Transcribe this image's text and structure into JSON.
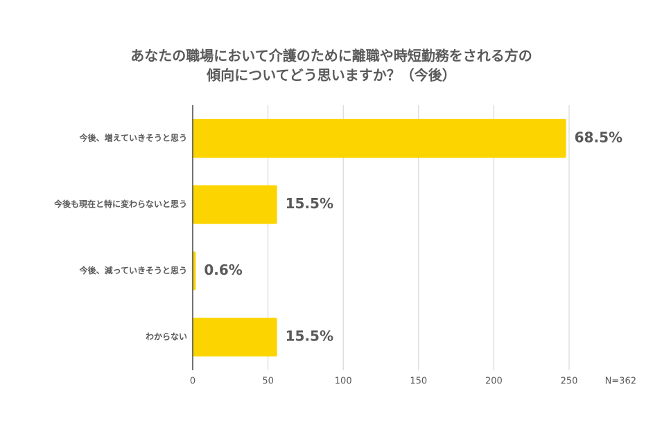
{
  "chart_data": {
    "type": "bar",
    "orientation": "horizontal",
    "title": [
      "あなたの職場において介護のために離職や時短勤務をされる方の",
      "傾向についてどう思いますか？（今後）"
    ],
    "categories": [
      "今後、増えていきそうと思う",
      "今後も現在と特に変わらないと思う",
      "今後、減っていきそうと思う",
      "わからない"
    ],
    "values": [
      248,
      56,
      2,
      56
    ],
    "value_labels": [
      "68.5%",
      "15.5%",
      "0.6%",
      "15.5%"
    ],
    "color": "#fcd500",
    "xlim": [
      0,
      250
    ],
    "xticks": [
      0,
      50,
      100,
      150,
      200,
      250
    ],
    "grid": true,
    "annotation": "N=362"
  }
}
